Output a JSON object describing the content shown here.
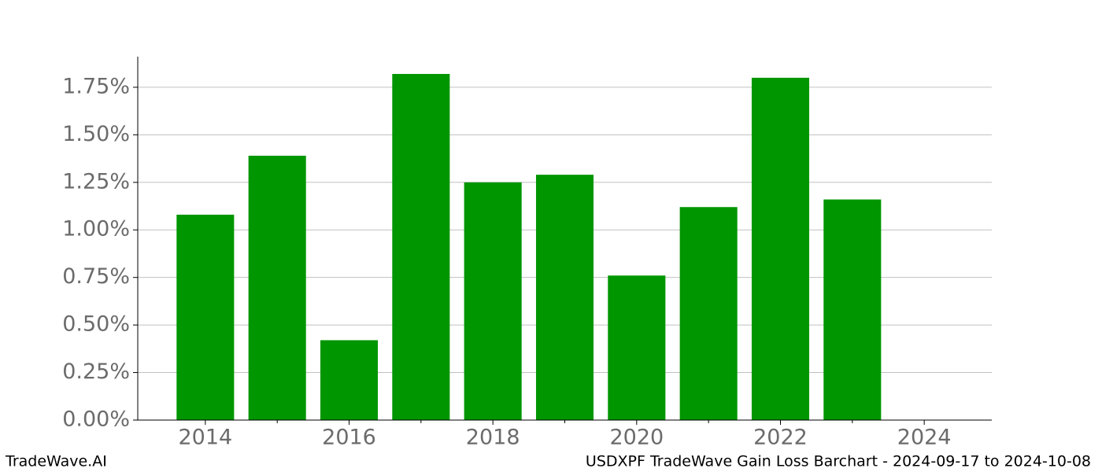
{
  "chart_data": {
    "type": "bar",
    "x": [
      2014,
      2015,
      2016,
      2017,
      2018,
      2019,
      2020,
      2021,
      2022,
      2023,
      2024
    ],
    "values": [
      1.08,
      1.39,
      0.42,
      1.82,
      1.25,
      1.29,
      0.76,
      1.12,
      1.8,
      1.16,
      0
    ],
    "bar_width": 0.8,
    "color": "#009600",
    "xlim": [
      2013.06,
      2024.94
    ],
    "xticks": [
      2014,
      2016,
      2018,
      2020,
      2022,
      2024
    ],
    "xminorticks": [
      2015,
      2017,
      2019,
      2021,
      2023
    ],
    "ylim": [
      0,
      1.911
    ],
    "yticks": [
      {
        "value": 0,
        "label": "0.00%"
      },
      {
        "value": 0.25,
        "label": "0.25%"
      },
      {
        "value": 0.5,
        "label": "0.50%"
      },
      {
        "value": 0.75,
        "label": "0.75%"
      },
      {
        "value": 1.0,
        "label": "1.00%"
      },
      {
        "value": 1.25,
        "label": "1.25%"
      },
      {
        "value": 1.5,
        "label": "1.50%"
      },
      {
        "value": 1.75,
        "label": "1.75%"
      }
    ],
    "grid": true,
    "footer_left": "TradeWave.AI",
    "footer_right": "USDXPF TradeWave Gain Loss Barchart - 2024-09-17 to 2024-10-08"
  }
}
